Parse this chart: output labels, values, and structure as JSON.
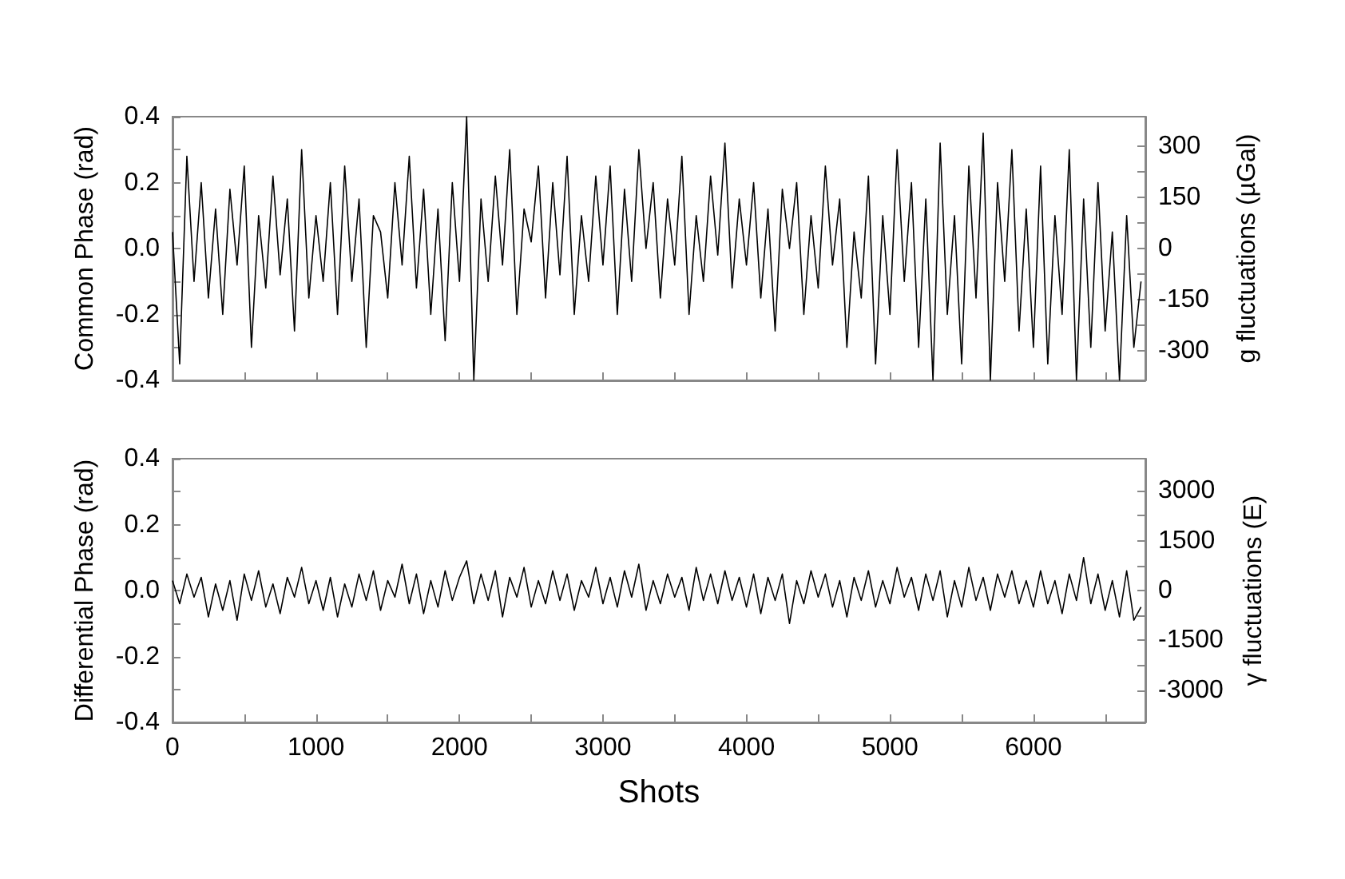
{
  "chart_data": [
    {
      "type": "line",
      "ylabel": "Common Phase (rad)",
      "y2label": "g fluctuations (µGal)",
      "tick_labels": "y",
      "grid": false,
      "marker": "none",
      "x": [
        0,
        50,
        100,
        150,
        200,
        250,
        300,
        350,
        400,
        450,
        500,
        550,
        600,
        650,
        700,
        750,
        800,
        850,
        900,
        950,
        1000,
        1050,
        1100,
        1150,
        1200,
        1250,
        1300,
        1350,
        1400,
        1450,
        1500,
        1550,
        1600,
        1650,
        1700,
        1750,
        1800,
        1850,
        1900,
        1950,
        2000,
        2050,
        2100,
        2150,
        2200,
        2250,
        2300,
        2350,
        2400,
        2450,
        2500,
        2550,
        2600,
        2650,
        2700,
        2750,
        2800,
        2850,
        2900,
        2950,
        3000,
        3050,
        3100,
        3150,
        3200,
        3250,
        3300,
        3350,
        3400,
        3450,
        3500,
        3550,
        3600,
        3650,
        3700,
        3750,
        3800,
        3850,
        3900,
        3950,
        4000,
        4050,
        4100,
        4150,
        4200,
        4250,
        4300,
        4350,
        4400,
        4450,
        4500,
        4550,
        4600,
        4650,
        4700,
        4750,
        4800,
        4850,
        4900,
        4950,
        5000,
        5050,
        5100,
        5150,
        5200,
        5250,
        5300,
        5350,
        5400,
        5450,
        5500,
        5550,
        5600,
        5650,
        5700,
        5750,
        5800,
        5850,
        5900,
        5950,
        6000,
        6050,
        6100,
        6150,
        6200,
        6250,
        6300,
        6350,
        6400,
        6450,
        6500,
        6550,
        6600,
        6650,
        6700,
        6750
      ],
      "series": [
        {
          "color": "#000000",
          "values": [
            0.05,
            -0.35,
            0.28,
            -0.1,
            0.2,
            -0.15,
            0.12,
            -0.2,
            0.18,
            -0.05,
            0.25,
            -0.3,
            0.1,
            -0.12,
            0.22,
            -0.08,
            0.15,
            -0.25,
            0.3,
            -0.15,
            0.1,
            -0.1,
            0.2,
            -0.2,
            0.25,
            -0.1,
            0.15,
            -0.3,
            0.1,
            0.05,
            -0.15,
            0.2,
            -0.05,
            0.28,
            -0.12,
            0.18,
            -0.2,
            0.12,
            -0.28,
            0.2,
            -0.1,
            0.4,
            -0.4,
            0.15,
            -0.1,
            0.22,
            -0.05,
            0.3,
            -0.2,
            0.12,
            0.02,
            0.25,
            -0.15,
            0.2,
            -0.08,
            0.28,
            -0.2,
            0.1,
            -0.1,
            0.22,
            -0.05,
            0.25,
            -0.2,
            0.18,
            -0.1,
            0.3,
            0.0,
            0.2,
            -0.15,
            0.15,
            -0.05,
            0.28,
            -0.2,
            0.1,
            -0.1,
            0.22,
            -0.02,
            0.32,
            -0.12,
            0.15,
            -0.05,
            0.2,
            -0.15,
            0.12,
            -0.25,
            0.18,
            0.0,
            0.2,
            -0.2,
            0.1,
            -0.12,
            0.25,
            -0.05,
            0.15,
            -0.3,
            0.05,
            -0.15,
            0.22,
            -0.35,
            0.1,
            -0.2,
            0.3,
            -0.1,
            0.2,
            -0.3,
            0.15,
            -0.4,
            0.32,
            -0.2,
            0.1,
            -0.35,
            0.25,
            -0.15,
            0.35,
            -0.4,
            0.2,
            -0.1,
            0.3,
            -0.25,
            0.12,
            -0.3,
            0.25,
            -0.35,
            0.1,
            -0.2,
            0.3,
            -0.4,
            0.15,
            -0.3,
            0.2,
            -0.25,
            0.05,
            -0.4,
            0.1,
            -0.3,
            -0.1
          ]
        }
      ],
      "xlim": [
        0,
        6780
      ],
      "xticks": [
        {
          "value": 0,
          "label": null
        },
        {
          "value": 500,
          "label": null
        },
        {
          "value": 1000,
          "label": null
        },
        {
          "value": 1500,
          "label": null
        },
        {
          "value": 2000,
          "label": null
        },
        {
          "value": 2500,
          "label": null
        },
        {
          "value": 3000,
          "label": null
        },
        {
          "value": 3500,
          "label": null
        },
        {
          "value": 4000,
          "label": null
        },
        {
          "value": 4500,
          "label": null
        },
        {
          "value": 5000,
          "label": null
        },
        {
          "value": 5500,
          "label": null
        },
        {
          "value": 6000,
          "label": null
        },
        {
          "value": 6500,
          "label": null
        }
      ],
      "ylim": [
        -0.4,
        0.4
      ],
      "yticks": [
        {
          "value": -0.4,
          "label": "-0.4"
        },
        {
          "value": -0.3,
          "label": null
        },
        {
          "value": -0.2,
          "label": "-0.2"
        },
        {
          "value": -0.1,
          "label": null
        },
        {
          "value": 0,
          "label": "0.0"
        },
        {
          "value": 0.1,
          "label": null
        },
        {
          "value": 0.2,
          "label": "0.2"
        },
        {
          "value": 0.3,
          "label": null
        },
        {
          "value": 0.4,
          "label": "0.4"
        }
      ],
      "y2lim": [
        -387,
        387
      ],
      "y2ticks": [
        -300,
        {
          "value": -225,
          "label": null
        },
        -150,
        {
          "value": -75,
          "label": null
        },
        0,
        {
          "value": 75,
          "label": null
        },
        150,
        {
          "value": 225,
          "label": null
        },
        300
      ]
    },
    {
      "type": "line",
      "xlabel": "Shots",
      "ylabel": "Differential Phase (rad)",
      "y2label": "γ fluctuations (E)",
      "grid": false,
      "marker": "none",
      "x": [
        0,
        50,
        100,
        150,
        200,
        250,
        300,
        350,
        400,
        450,
        500,
        550,
        600,
        650,
        700,
        750,
        800,
        850,
        900,
        950,
        1000,
        1050,
        1100,
        1150,
        1200,
        1250,
        1300,
        1350,
        1400,
        1450,
        1500,
        1550,
        1600,
        1650,
        1700,
        1750,
        1800,
        1850,
        1900,
        1950,
        2000,
        2050,
        2100,
        2150,
        2200,
        2250,
        2300,
        2350,
        2400,
        2450,
        2500,
        2550,
        2600,
        2650,
        2700,
        2750,
        2800,
        2850,
        2900,
        2950,
        3000,
        3050,
        3100,
        3150,
        3200,
        3250,
        3300,
        3350,
        3400,
        3450,
        3500,
        3550,
        3600,
        3650,
        3700,
        3750,
        3800,
        3850,
        3900,
        3950,
        4000,
        4050,
        4100,
        4150,
        4200,
        4250,
        4300,
        4350,
        4400,
        4450,
        4500,
        4550,
        4600,
        4650,
        4700,
        4750,
        4800,
        4850,
        4900,
        4950,
        5000,
        5050,
        5100,
        5150,
        5200,
        5250,
        5300,
        5350,
        5400,
        5450,
        5500,
        5550,
        5600,
        5650,
        5700,
        5750,
        5800,
        5850,
        5900,
        5950,
        6000,
        6050,
        6100,
        6150,
        6200,
        6250,
        6300,
        6350,
        6400,
        6450,
        6500,
        6550,
        6600,
        6650,
        6700,
        6750
      ],
      "series": [
        {
          "color": "#000000",
          "values": [
            0.03,
            -0.04,
            0.05,
            -0.02,
            0.04,
            -0.08,
            0.02,
            -0.06,
            0.03,
            -0.09,
            0.05,
            -0.03,
            0.06,
            -0.05,
            0.02,
            -0.07,
            0.04,
            -0.02,
            0.07,
            -0.04,
            0.03,
            -0.06,
            0.04,
            -0.08,
            0.02,
            -0.05,
            0.05,
            -0.03,
            0.06,
            -0.06,
            0.03,
            -0.02,
            0.08,
            -0.04,
            0.05,
            -0.07,
            0.03,
            -0.05,
            0.06,
            -0.03,
            0.04,
            0.09,
            -0.04,
            0.05,
            -0.03,
            0.06,
            -0.08,
            0.04,
            -0.02,
            0.07,
            -0.05,
            0.03,
            -0.04,
            0.06,
            -0.03,
            0.05,
            -0.06,
            0.03,
            -0.02,
            0.07,
            -0.04,
            0.04,
            -0.05,
            0.06,
            -0.02,
            0.08,
            -0.06,
            0.03,
            -0.04,
            0.05,
            -0.02,
            0.04,
            -0.06,
            0.07,
            -0.03,
            0.05,
            -0.04,
            0.06,
            -0.03,
            0.04,
            -0.05,
            0.05,
            -0.07,
            0.04,
            -0.03,
            0.05,
            -0.1,
            0.03,
            -0.04,
            0.06,
            -0.02,
            0.05,
            -0.05,
            0.03,
            -0.08,
            0.04,
            -0.03,
            0.06,
            -0.05,
            0.03,
            -0.04,
            0.07,
            -0.02,
            0.04,
            -0.06,
            0.05,
            -0.03,
            0.06,
            -0.08,
            0.03,
            -0.05,
            0.07,
            -0.03,
            0.04,
            -0.06,
            0.05,
            -0.02,
            0.06,
            -0.04,
            0.03,
            -0.05,
            0.06,
            -0.04,
            0.03,
            -0.07,
            0.05,
            -0.03,
            0.1,
            -0.04,
            0.05,
            -0.06,
            0.03,
            -0.08,
            0.06,
            -0.09,
            -0.05
          ]
        }
      ],
      "xlim": [
        0,
        6780
      ],
      "xticks": [
        {
          "value": 0,
          "label": "0"
        },
        {
          "value": 500,
          "label": null
        },
        {
          "value": 1000,
          "label": "1000"
        },
        {
          "value": 1500,
          "label": null
        },
        {
          "value": 2000,
          "label": "2000"
        },
        {
          "value": 2500,
          "label": null
        },
        {
          "value": 3000,
          "label": "3000"
        },
        {
          "value": 3500,
          "label": null
        },
        {
          "value": 4000,
          "label": "4000"
        },
        {
          "value": 4500,
          "label": null
        },
        {
          "value": 5000,
          "label": "5000"
        },
        {
          "value": 5500,
          "label": null
        },
        {
          "value": 6000,
          "label": "6000"
        },
        {
          "value": 6500,
          "label": null
        }
      ],
      "ylim": [
        -0.4,
        0.4
      ],
      "yticks": [
        {
          "value": -0.4,
          "label": "-0.4"
        },
        {
          "value": -0.3,
          "label": null
        },
        {
          "value": -0.2,
          "label": "-0.2"
        },
        {
          "value": -0.1,
          "label": null
        },
        {
          "value": 0,
          "label": "0.0"
        },
        {
          "value": 0.1,
          "label": null
        },
        {
          "value": 0.2,
          "label": "0.2"
        },
        {
          "value": 0.3,
          "label": null
        },
        {
          "value": 0.4,
          "label": "0.4"
        }
      ],
      "y2lim": [
        -3970,
        3970
      ],
      "y2ticks": [
        -3000,
        {
          "value": -2250,
          "label": null
        },
        -1500,
        {
          "value": -750,
          "label": null
        },
        0,
        {
          "value": 750,
          "label": null
        },
        1500,
        {
          "value": 2250,
          "label": null
        },
        3000
      ]
    }
  ]
}
